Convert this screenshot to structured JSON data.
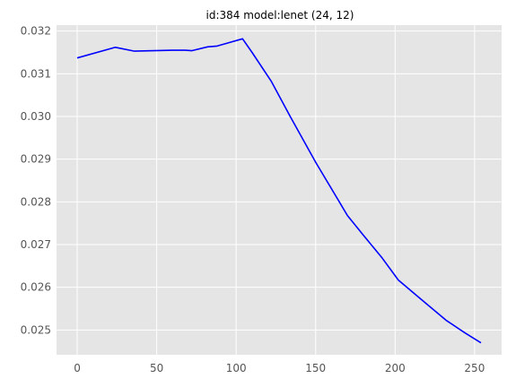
{
  "chart_data": {
    "type": "line",
    "title": "id:384 model:lenet (24, 12)",
    "xlabel": "",
    "ylabel": "",
    "xlim": [
      -13,
      267
    ],
    "ylim": [
      0.02442,
      0.03214
    ],
    "xticks": [
      0,
      50,
      100,
      150,
      200,
      250
    ],
    "yticks": [
      0.025,
      0.026,
      0.027,
      0.028,
      0.029,
      0.03,
      0.031,
      0.032
    ],
    "ytick_labels": [
      "0.025",
      "0.026",
      "0.027",
      "0.028",
      "0.029",
      "0.030",
      "0.031",
      "0.032"
    ],
    "grid": true,
    "background": "#e5e5e5",
    "grid_color": "#ffffff",
    "series": [
      {
        "color": "#0000ff",
        "x": [
          0,
          24,
          36,
          48,
          60,
          68,
          72,
          82,
          88,
          104,
          110,
          122,
          134,
          150,
          170,
          180,
          192,
          202,
          216,
          232,
          244,
          254
        ],
        "y": [
          0.03137,
          0.03162,
          0.03153,
          0.03154,
          0.03155,
          0.03155,
          0.03154,
          0.03163,
          0.03165,
          0.03182,
          0.0315,
          0.03083,
          0.03,
          0.02893,
          0.02768,
          0.02722,
          0.02668,
          0.02617,
          0.02573,
          0.02523,
          0.02493,
          0.0247
        ]
      }
    ]
  }
}
